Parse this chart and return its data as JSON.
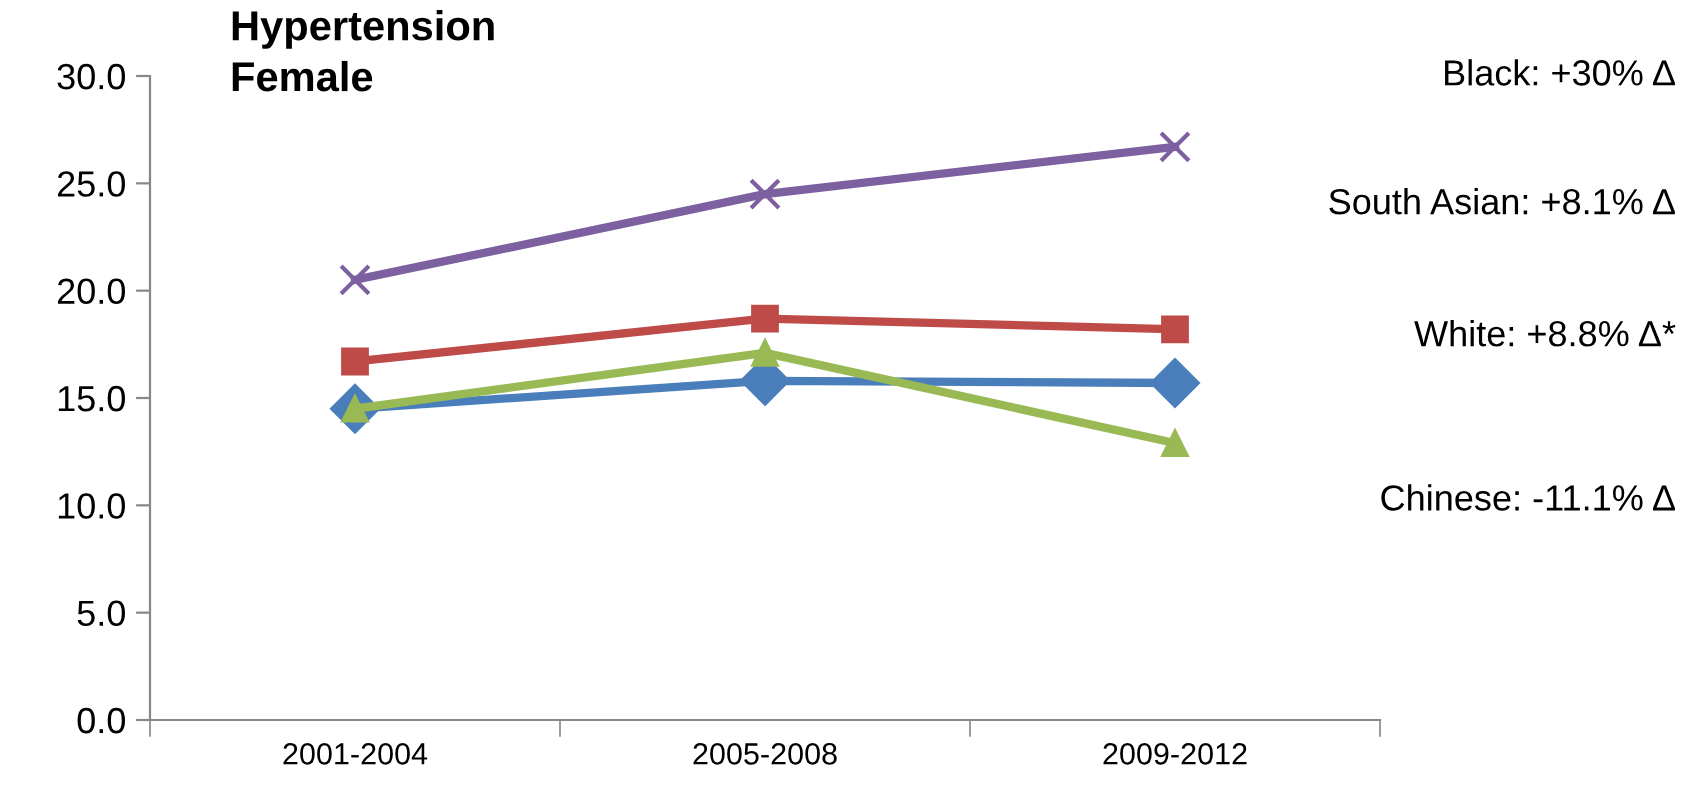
{
  "chart_data": {
    "type": "line",
    "title": "Hypertension\nFemale",
    "categories": [
      "2001-2004",
      "2005-2008",
      "2009-2012"
    ],
    "series": [
      {
        "color": "#4a7ebb",
        "marker": "diamond",
        "values": [
          14.5,
          15.8,
          15.7
        ]
      },
      {
        "color": "#be4b48",
        "marker": "square",
        "values": [
          16.7,
          18.7,
          18.2
        ]
      },
      {
        "color": "#98b954",
        "marker": "triangle",
        "values": [
          14.5,
          17.1,
          12.9
        ]
      },
      {
        "color": "#7d60a0",
        "marker": "cross",
        "values": [
          20.5,
          24.5,
          26.7
        ]
      }
    ],
    "annotations": [
      "Black: +30% Δ",
      "South Asian: +8.1% Δ",
      "White: +8.8% Δ*",
      "Chinese: -11.1% Δ"
    ],
    "ylim": [
      0,
      30
    ],
    "yticks": [
      {
        "value": 0,
        "label": "0.0"
      },
      {
        "value": 5,
        "label": "5.0"
      },
      {
        "value": 10,
        "label": "10.0"
      },
      {
        "value": 15,
        "label": "15.0"
      },
      {
        "value": 20,
        "label": "20.0"
      },
      {
        "value": 25,
        "label": "25.0"
      },
      {
        "value": 30,
        "label": "30.0"
      }
    ],
    "grid": false,
    "legend": false,
    "line_style": "solid"
  }
}
